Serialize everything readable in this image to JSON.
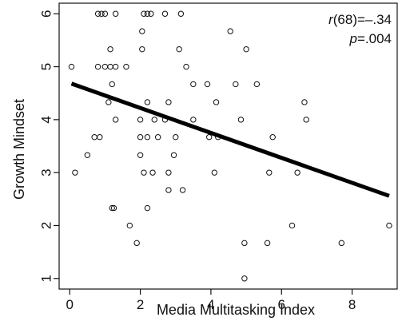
{
  "chart_data": {
    "type": "scatter",
    "xlabel": "Media Multitasking Index",
    "ylabel": "Growth Mindset",
    "xlim": [
      -0.3,
      9.3
    ],
    "ylim": [
      0.8,
      6.2
    ],
    "x_ticks": [
      0,
      2,
      4,
      6,
      8
    ],
    "y_ticks": [
      1,
      2,
      3,
      4,
      5,
      6
    ],
    "x_tick_labels": [
      "0",
      "2",
      "4",
      "6",
      "8"
    ],
    "y_tick_labels": [
      "1",
      "2",
      "3",
      "4",
      "5",
      "6"
    ],
    "grid": false,
    "annotation": {
      "r_symbol": "r",
      "r_value": "(68)=–.34",
      "p_symbol": "p",
      "p_value": "=.004"
    },
    "regression_line": {
      "x": [
        0.05,
        9.05
      ],
      "y": [
        4.68,
        2.56
      ]
    },
    "points": [
      [
        0.05,
        5.0
      ],
      [
        0.15,
        3.0
      ],
      [
        0.5,
        3.33
      ],
      [
        0.7,
        3.67
      ],
      [
        0.8,
        5.0
      ],
      [
        0.85,
        3.67
      ],
      [
        0.8,
        6.0
      ],
      [
        0.9,
        6.0
      ],
      [
        1.0,
        6.0
      ],
      [
        1.0,
        5.0
      ],
      [
        1.1,
        4.33
      ],
      [
        1.15,
        5.0
      ],
      [
        1.15,
        5.33
      ],
      [
        1.2,
        4.67
      ],
      [
        1.2,
        2.33
      ],
      [
        1.25,
        2.33
      ],
      [
        1.3,
        6.0
      ],
      [
        1.3,
        4.0
      ],
      [
        1.3,
        5.0
      ],
      [
        1.6,
        5.0
      ],
      [
        1.7,
        2.0
      ],
      [
        1.9,
        1.67
      ],
      [
        2.0,
        3.33
      ],
      [
        2.0,
        3.67
      ],
      [
        2.0,
        4.0
      ],
      [
        2.05,
        5.67
      ],
      [
        2.05,
        5.33
      ],
      [
        2.1,
        6.0
      ],
      [
        2.1,
        3.0
      ],
      [
        2.2,
        6.0
      ],
      [
        2.2,
        3.67
      ],
      [
        2.2,
        2.33
      ],
      [
        2.2,
        4.33
      ],
      [
        2.3,
        6.0
      ],
      [
        2.35,
        3.0
      ],
      [
        2.4,
        4.0
      ],
      [
        2.5,
        3.67
      ],
      [
        2.7,
        6.0
      ],
      [
        2.7,
        4.0
      ],
      [
        2.8,
        4.33
      ],
      [
        2.8,
        3.0
      ],
      [
        2.8,
        2.67
      ],
      [
        2.95,
        3.33
      ],
      [
        3.0,
        3.67
      ],
      [
        3.1,
        5.33
      ],
      [
        3.15,
        6.0
      ],
      [
        3.2,
        2.67
      ],
      [
        3.3,
        5.0
      ],
      [
        3.5,
        4.67
      ],
      [
        3.5,
        4.0
      ],
      [
        3.9,
        4.67
      ],
      [
        3.95,
        3.67
      ],
      [
        4.1,
        3.0
      ],
      [
        4.15,
        4.33
      ],
      [
        4.2,
        3.67
      ],
      [
        4.55,
        5.67
      ],
      [
        4.7,
        4.67
      ],
      [
        4.85,
        4.0
      ],
      [
        4.95,
        1.67
      ],
      [
        4.95,
        1.0
      ],
      [
        5.0,
        5.33
      ],
      [
        5.3,
        4.67
      ],
      [
        5.6,
        1.67
      ],
      [
        5.65,
        3.0
      ],
      [
        5.75,
        3.67
      ],
      [
        6.3,
        2.0
      ],
      [
        6.45,
        3.0
      ],
      [
        6.65,
        4.33
      ],
      [
        6.7,
        4.0
      ],
      [
        7.7,
        1.67
      ],
      [
        9.05,
        2.0
      ]
    ]
  }
}
